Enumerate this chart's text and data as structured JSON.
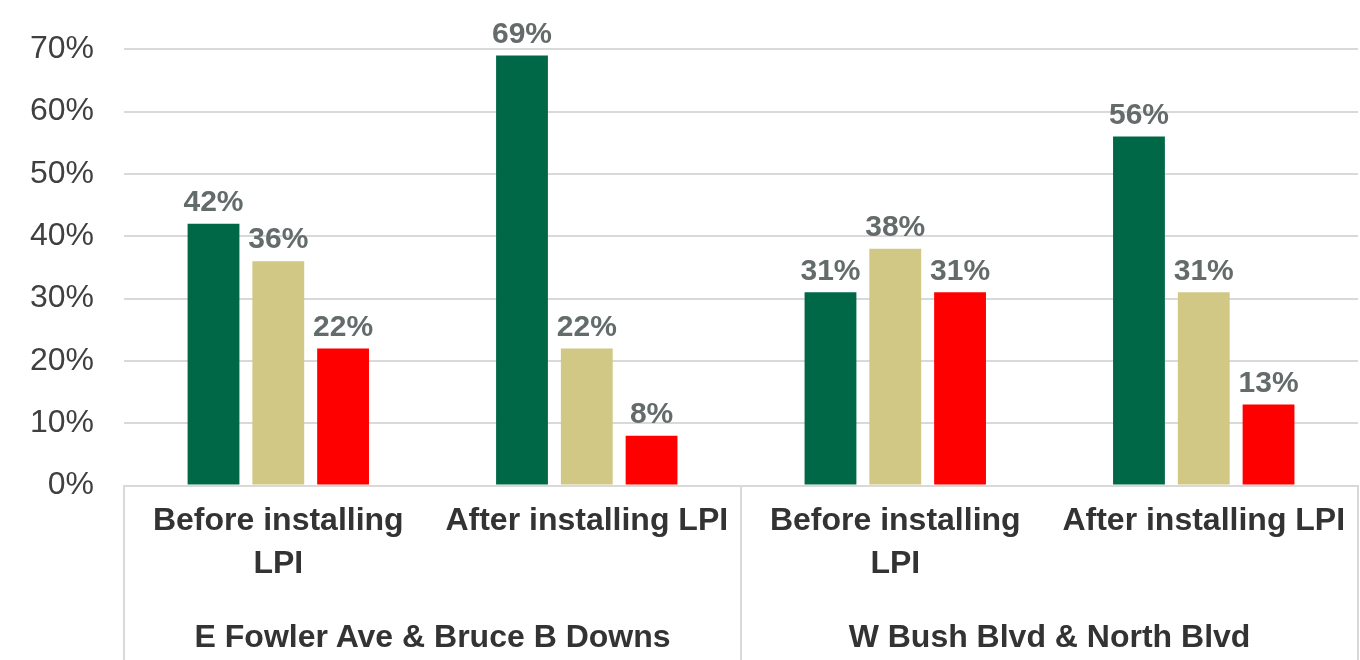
{
  "chart_data": {
    "type": "bar",
    "categories": [
      "Before installing LPI",
      "After installing LPI",
      "Before installing LPI",
      "After installing LPI"
    ],
    "series": [
      {
        "color": "#006847",
        "values": [
          42,
          69,
          31,
          56
        ],
        "value_labels": [
          "42%",
          "69%",
          "31%",
          "56%"
        ]
      },
      {
        "color": "#d0c884",
        "values": [
          36,
          22,
          38,
          31
        ],
        "value_labels": [
          "36%",
          "22%",
          "38%",
          "31%"
        ]
      },
      {
        "color": "#ff0000",
        "values": [
          22,
          8,
          31,
          13
        ],
        "value_labels": [
          "22%",
          "8%",
          "31%",
          "13%"
        ]
      }
    ],
    "ylim": [
      0,
      70
    ],
    "yticks": [
      {
        "value": 0,
        "label": "0%"
      },
      {
        "value": 10,
        "label": "10%"
      },
      {
        "value": 20,
        "label": "20%"
      },
      {
        "value": 30,
        "label": "30%"
      },
      {
        "value": 40,
        "label": "40%"
      },
      {
        "value": 50,
        "label": "50%"
      },
      {
        "value": 60,
        "label": "60%"
      },
      {
        "value": 70,
        "label": "70%"
      }
    ],
    "grid": "y",
    "legend": false,
    "annotations": [
      "E Fowler Ave & Bruce B Downs",
      "W Bush Blvd & North Blvd"
    ]
  }
}
